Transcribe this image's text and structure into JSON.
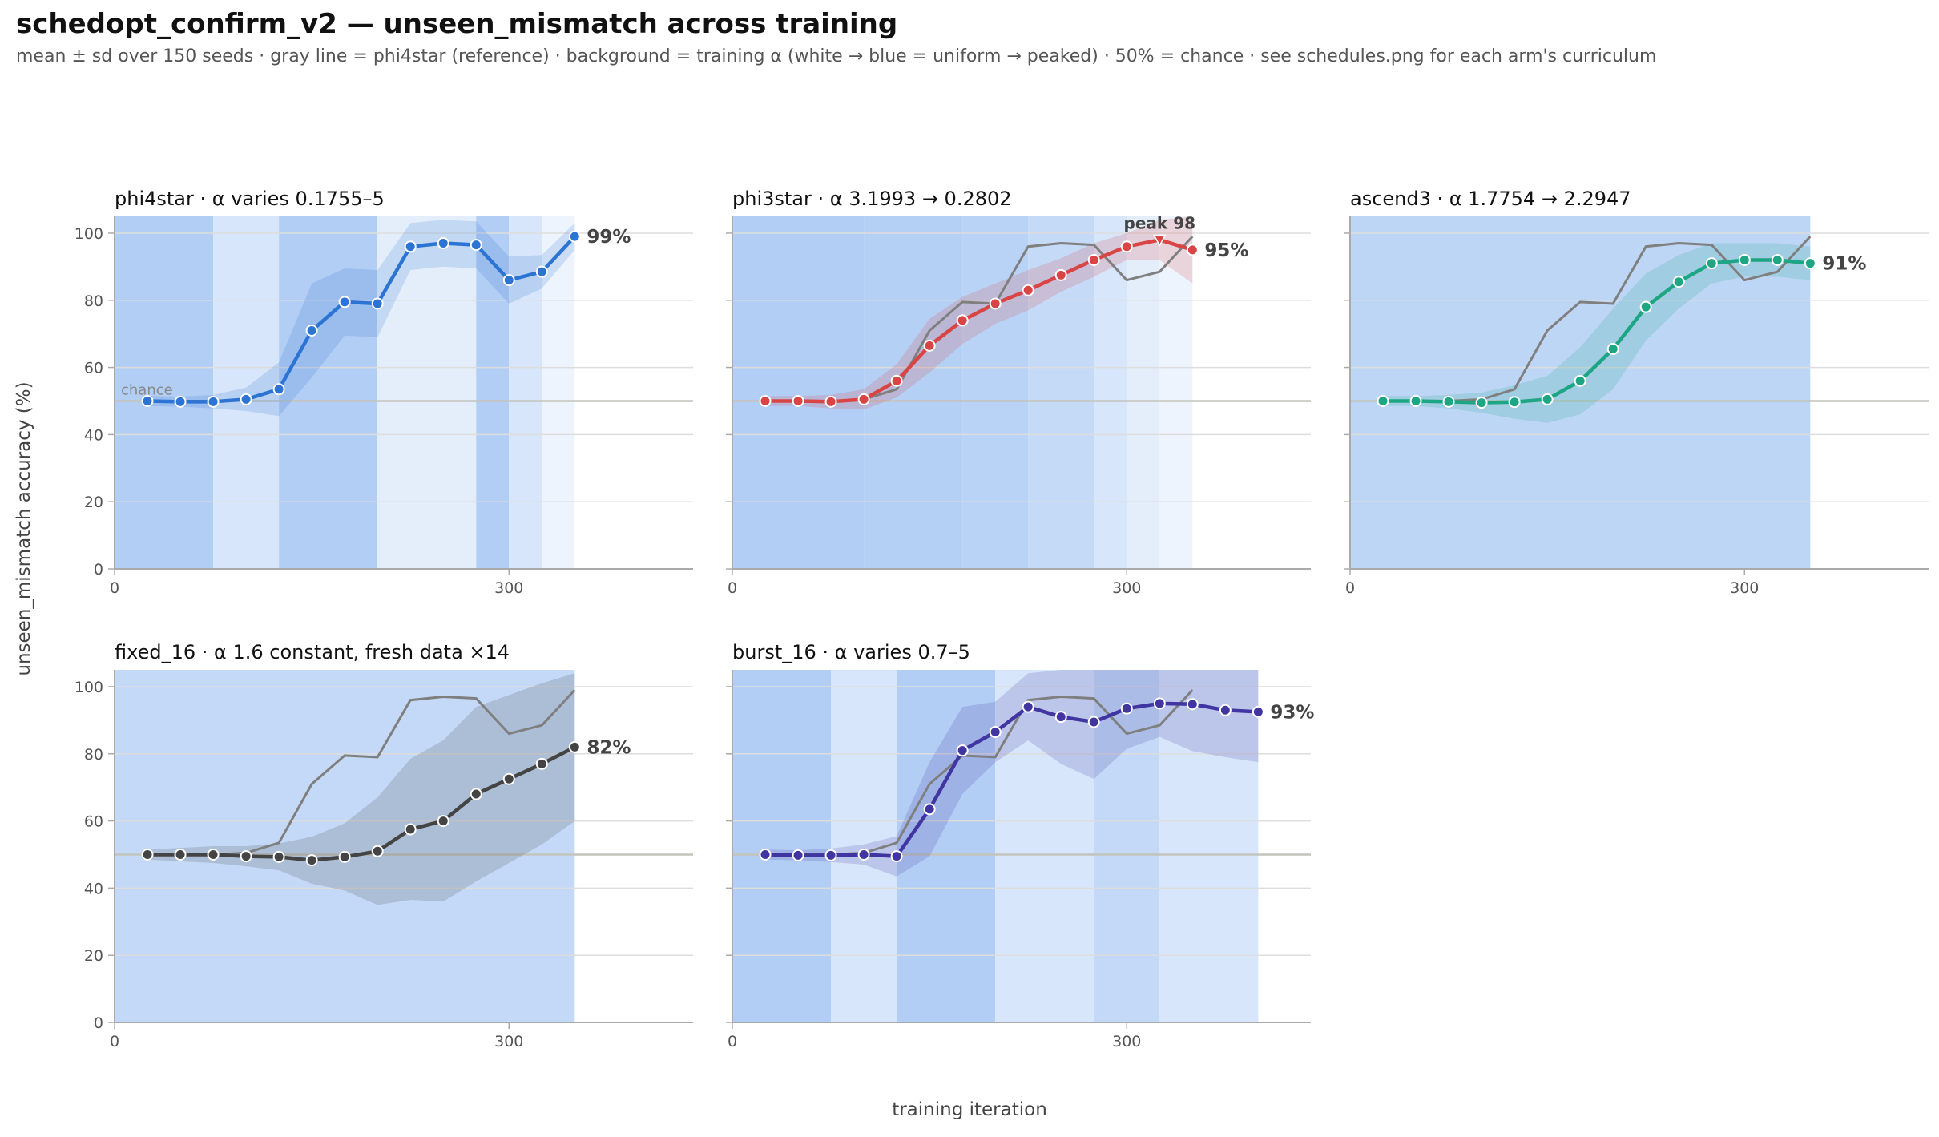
{
  "title": "schedopt_confirm_v2 — unseen_mismatch across training",
  "subtitle": "mean ± sd over 150 seeds · gray line = phi4star (reference) · background = training α (white → blue = uniform → peaked) · 50% = chance · see schedules.png for each arm's curriculum",
  "xlabel": "training iteration",
  "ylabel": "unseen_mismatch accuracy (%)",
  "colors": {
    "reference": "#7f7f7f",
    "chance_line": "#c4c4bc",
    "grid": "#dddddd",
    "axis": "#aaaaaa"
  },
  "chart_data": {
    "type": "line",
    "xlim": [
      0,
      440
    ],
    "ylim": [
      0,
      105
    ],
    "x_ticks": [
      0,
      300
    ],
    "y_ticks": [
      0,
      20,
      40,
      60,
      80,
      100
    ],
    "chance_value": 50,
    "chance_label": "chance",
    "reference": {
      "x": [
        25,
        50,
        75,
        100,
        125,
        150,
        175,
        200,
        225,
        250,
        275,
        300,
        325,
        350
      ],
      "y": [
        50,
        50,
        50,
        50.5,
        53.5,
        71,
        79.5,
        79,
        96,
        97,
        96.5,
        86,
        88.5,
        99
      ]
    },
    "panels": [
      {
        "id": "phi4star",
        "name": "phi4star",
        "alpha_desc": "α varies 0.1755–5",
        "color": "#2b74d4",
        "end_label": "99%",
        "show_chance_label": true,
        "x": [
          25,
          50,
          75,
          100,
          125,
          150,
          175,
          200,
          225,
          250,
          275,
          300,
          325,
          350
        ],
        "y": [
          50,
          49.8,
          49.8,
          50.5,
          53.5,
          71,
          79.5,
          79,
          96,
          97,
          96.5,
          86,
          88.5,
          99
        ],
        "sd": [
          1.5,
          1.5,
          2,
          3.5,
          8,
          14,
          10,
          10,
          7,
          7,
          7,
          7,
          5,
          4
        ],
        "bg": [
          {
            "x0": 0,
            "x1": 75,
            "alpha": 4.5
          },
          {
            "x0": 75,
            "x1": 125,
            "alpha": 1.5
          },
          {
            "x0": 125,
            "x1": 200,
            "alpha": 4.5
          },
          {
            "x0": 200,
            "x1": 275,
            "alpha": 0.8
          },
          {
            "x0": 275,
            "x1": 300,
            "alpha": 4.5
          },
          {
            "x0": 300,
            "x1": 325,
            "alpha": 1.5
          },
          {
            "x0": 325,
            "x1": 350,
            "alpha": 0.4
          }
        ]
      },
      {
        "id": "phi3star",
        "name": "phi3star",
        "alpha_desc": "α 3.1993 → 0.2802",
        "color": "#d94545",
        "end_label": "95%",
        "peak_label": "peak 98",
        "peak_index": 12,
        "x": [
          25,
          50,
          75,
          100,
          125,
          150,
          175,
          200,
          225,
          250,
          275,
          300,
          325,
          350
        ],
        "y": [
          50,
          50,
          49.8,
          50.5,
          56,
          66.5,
          74,
          79,
          83,
          87.5,
          92,
          96,
          98,
          95
        ],
        "sd": [
          1.5,
          1.5,
          2,
          3,
          5,
          8,
          7,
          6,
          6,
          5,
          5,
          4,
          6,
          10
        ],
        "bg": [
          {
            "x0": 0,
            "x1": 100,
            "alpha": 4.5
          },
          {
            "x0": 100,
            "x1": 175,
            "alpha": 4.2
          },
          {
            "x0": 175,
            "x1": 225,
            "alpha": 3.8
          },
          {
            "x0": 225,
            "x1": 275,
            "alpha": 2.8
          },
          {
            "x0": 275,
            "x1": 300,
            "alpha": 1.5
          },
          {
            "x0": 300,
            "x1": 325,
            "alpha": 0.8
          },
          {
            "x0": 325,
            "x1": 350,
            "alpha": 0.4
          }
        ]
      },
      {
        "id": "ascend3",
        "name": "ascend3",
        "alpha_desc": "α 1.7754 → 2.2947",
        "color": "#1ea584",
        "end_label": "91%",
        "x": [
          25,
          50,
          75,
          100,
          125,
          150,
          175,
          200,
          225,
          250,
          275,
          300,
          325,
          350
        ],
        "y": [
          50,
          50,
          49.8,
          49.5,
          49.7,
          50.5,
          56,
          65.5,
          78,
          85.5,
          91,
          92,
          92,
          91
        ],
        "sd": [
          1.5,
          1.5,
          2,
          3,
          5,
          7,
          10,
          12,
          10,
          8,
          6,
          5,
          5,
          5
        ],
        "bg": [
          {
            "x0": 0,
            "x1": 350,
            "alpha": 3.4
          }
        ]
      },
      {
        "id": "fixed_16",
        "name": "fixed_16",
        "alpha_desc": "α 1.6 constant, fresh data ×14",
        "color": "#444444",
        "end_label": "82%",
        "x": [
          25,
          50,
          75,
          100,
          125,
          150,
          175,
          200,
          225,
          250,
          275,
          300,
          325,
          350
        ],
        "y": [
          50,
          50,
          50,
          49.5,
          49.3,
          48.3,
          49.3,
          51,
          57.5,
          60,
          68,
          72.5,
          77,
          82
        ],
        "sd": [
          1.5,
          2,
          2.5,
          3,
          4,
          7,
          10,
          16,
          21,
          24,
          26,
          25,
          24,
          22
        ],
        "bg": [
          {
            "x0": 0,
            "x1": 350,
            "alpha": 3
          }
        ]
      },
      {
        "id": "burst_16",
        "name": "burst_16",
        "alpha_desc": "α varies 0.7–5",
        "color": "#4035a1",
        "end_label": "93%",
        "x": [
          25,
          50,
          75,
          100,
          125,
          150,
          175,
          200,
          225,
          250,
          275,
          300,
          325,
          350,
          375,
          400
        ],
        "y": [
          50,
          49.8,
          49.8,
          50,
          49.5,
          63.5,
          81,
          86.5,
          94,
          91,
          89.5,
          93.5,
          95,
          94.8,
          93,
          92.5
        ],
        "sd": [
          1.5,
          1.5,
          2,
          3,
          6,
          14,
          13,
          9,
          10,
          14,
          17,
          12,
          10,
          14,
          14,
          15
        ],
        "bg": [
          {
            "x0": 0,
            "x1": 75,
            "alpha": 4.5
          },
          {
            "x0": 75,
            "x1": 125,
            "alpha": 1.5
          },
          {
            "x0": 125,
            "x1": 200,
            "alpha": 4.5
          },
          {
            "x0": 200,
            "x1": 275,
            "alpha": 1.5
          },
          {
            "x0": 275,
            "x1": 325,
            "alpha": 3
          },
          {
            "x0": 325,
            "x1": 400,
            "alpha": 1.5
          }
        ]
      }
    ]
  }
}
